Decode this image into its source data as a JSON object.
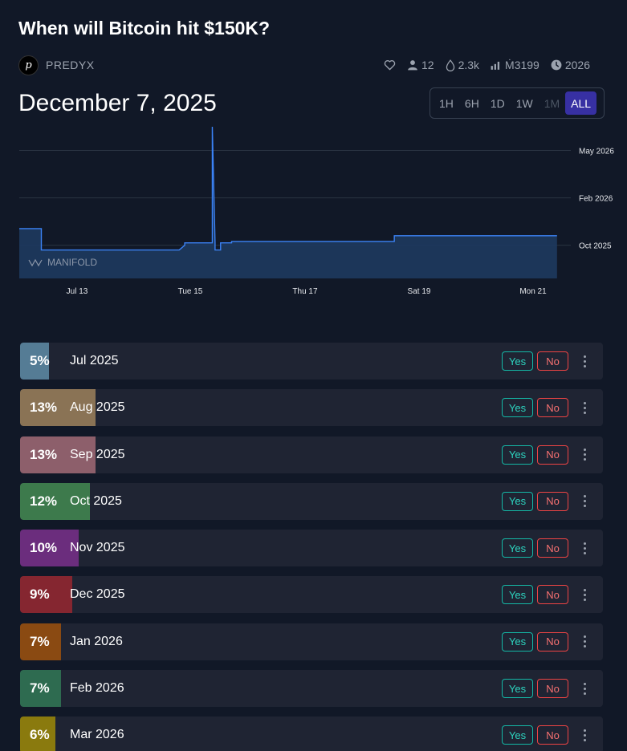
{
  "market": {
    "title": "When will Bitcoin hit $150K?",
    "creator": "PREDYX",
    "stats": {
      "traders": "12",
      "volume": "2.3k",
      "liquidity": "Ṁ3199",
      "close_year": "2026"
    },
    "top_answer_date": "December 7, 2025"
  },
  "time_range": {
    "options": [
      "1H",
      "6H",
      "1D",
      "1W",
      "1M",
      "ALL"
    ],
    "disabled": [
      "1M"
    ],
    "selected": "ALL"
  },
  "chart_data": {
    "type": "area",
    "watermark": "MANIFOLD",
    "x_ticks": [
      "Jul 13",
      "Tue 15",
      "Thu 17",
      "Sat 19",
      "Mon 21"
    ],
    "x_range": [
      0,
      10
    ],
    "x_tick_values": [
      2,
      4,
      6,
      8,
      10
    ],
    "y_ticks": [
      "May 2026",
      "Feb 2026",
      "Oct 2025"
    ],
    "y_tick_values": [
      0.0,
      1.0,
      2.0
    ],
    "y_range": [
      -0.5,
      2.7
    ],
    "grid": true,
    "series": [
      {
        "x": [
          0,
          0.4,
          0.4,
          2.9,
          2.9,
          3.0,
          3.0,
          3.5,
          3.5,
          3.55,
          3.55,
          3.65,
          3.65,
          3.85,
          3.85,
          6.8,
          6.8,
          9.75
        ],
        "y": [
          1.65,
          1.65,
          2.1,
          2.1,
          2.1,
          2.0,
          1.95,
          1.95,
          -0.5,
          1.95,
          2.1,
          2.1,
          1.95,
          1.95,
          1.92,
          1.92,
          1.8,
          1.8
        ]
      }
    ],
    "line_color": "#3b82f6",
    "fill_color": "#1e3a5f"
  },
  "answers": [
    {
      "label": "Jul 2025",
      "pct": "5%",
      "prob": 0.05,
      "color": "#557c95"
    },
    {
      "label": "Aug 2025",
      "pct": "13%",
      "prob": 0.13,
      "color": "#8a7355"
    },
    {
      "label": "Sep 2025",
      "pct": "13%",
      "prob": 0.13,
      "color": "#8d5f6b"
    },
    {
      "label": "Oct 2025",
      "pct": "12%",
      "prob": 0.12,
      "color": "#3d7a4c"
    },
    {
      "label": "Nov 2025",
      "pct": "10%",
      "prob": 0.1,
      "color": "#6b2d7d"
    },
    {
      "label": "Dec 2025",
      "pct": "9%",
      "prob": 0.09,
      "color": "#852630"
    },
    {
      "label": "Jan 2026",
      "pct": "7%",
      "prob": 0.07,
      "color": "#8a4a12"
    },
    {
      "label": "Feb 2026",
      "pct": "7%",
      "prob": 0.07,
      "color": "#2e6b50"
    },
    {
      "label": "Mar 2026",
      "pct": "6%",
      "prob": 0.06,
      "color": "#8a7a0e"
    }
  ],
  "answer_buttons": {
    "yes": "Yes",
    "no": "No"
  },
  "colors": {
    "accent": "#3730a3",
    "yes": "#14b8a6",
    "no": "#ef4444"
  },
  "icons": {
    "like": "heart-icon",
    "traders": "user-icon",
    "volume": "droplet-icon",
    "liquidity": "bar-chart-icon",
    "close": "clock-icon",
    "more": "more-vertical-icon"
  }
}
